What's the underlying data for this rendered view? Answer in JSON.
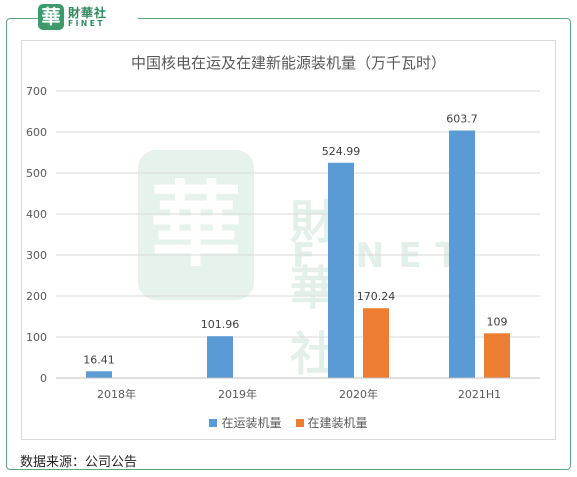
{
  "brand": {
    "seal_char": "華",
    "name_cn": "財華社",
    "name_en": "FINET"
  },
  "source_note": "数据来源：公司公告",
  "colors": {
    "frame": "#5aa87d",
    "series_operating": "#5b9bd5",
    "series_construction": "#ed7d31",
    "axis_text": "#595959",
    "grid": "#d9d9d9"
  },
  "chart_data": {
    "type": "bar",
    "title": "中国核电在运及在建新能源装机量（万千瓦时）",
    "categories": [
      "2018年",
      "2019年",
      "2020年",
      "2021H1"
    ],
    "series": [
      {
        "name": "在运装机量",
        "values": [
          16.41,
          101.96,
          524.99,
          603.7
        ],
        "labels": [
          "16.41",
          "101.96",
          "524.99",
          "603.7"
        ]
      },
      {
        "name": "在建装机量",
        "values": [
          null,
          null,
          170.24,
          109
        ],
        "labels": [
          "",
          "",
          "170.24",
          "109"
        ]
      }
    ],
    "ylim": [
      0,
      700
    ],
    "yticks": [
      "0",
      "100",
      "200",
      "300",
      "400",
      "500",
      "600",
      "700"
    ],
    "grid": true,
    "legend_position": "bottom"
  }
}
